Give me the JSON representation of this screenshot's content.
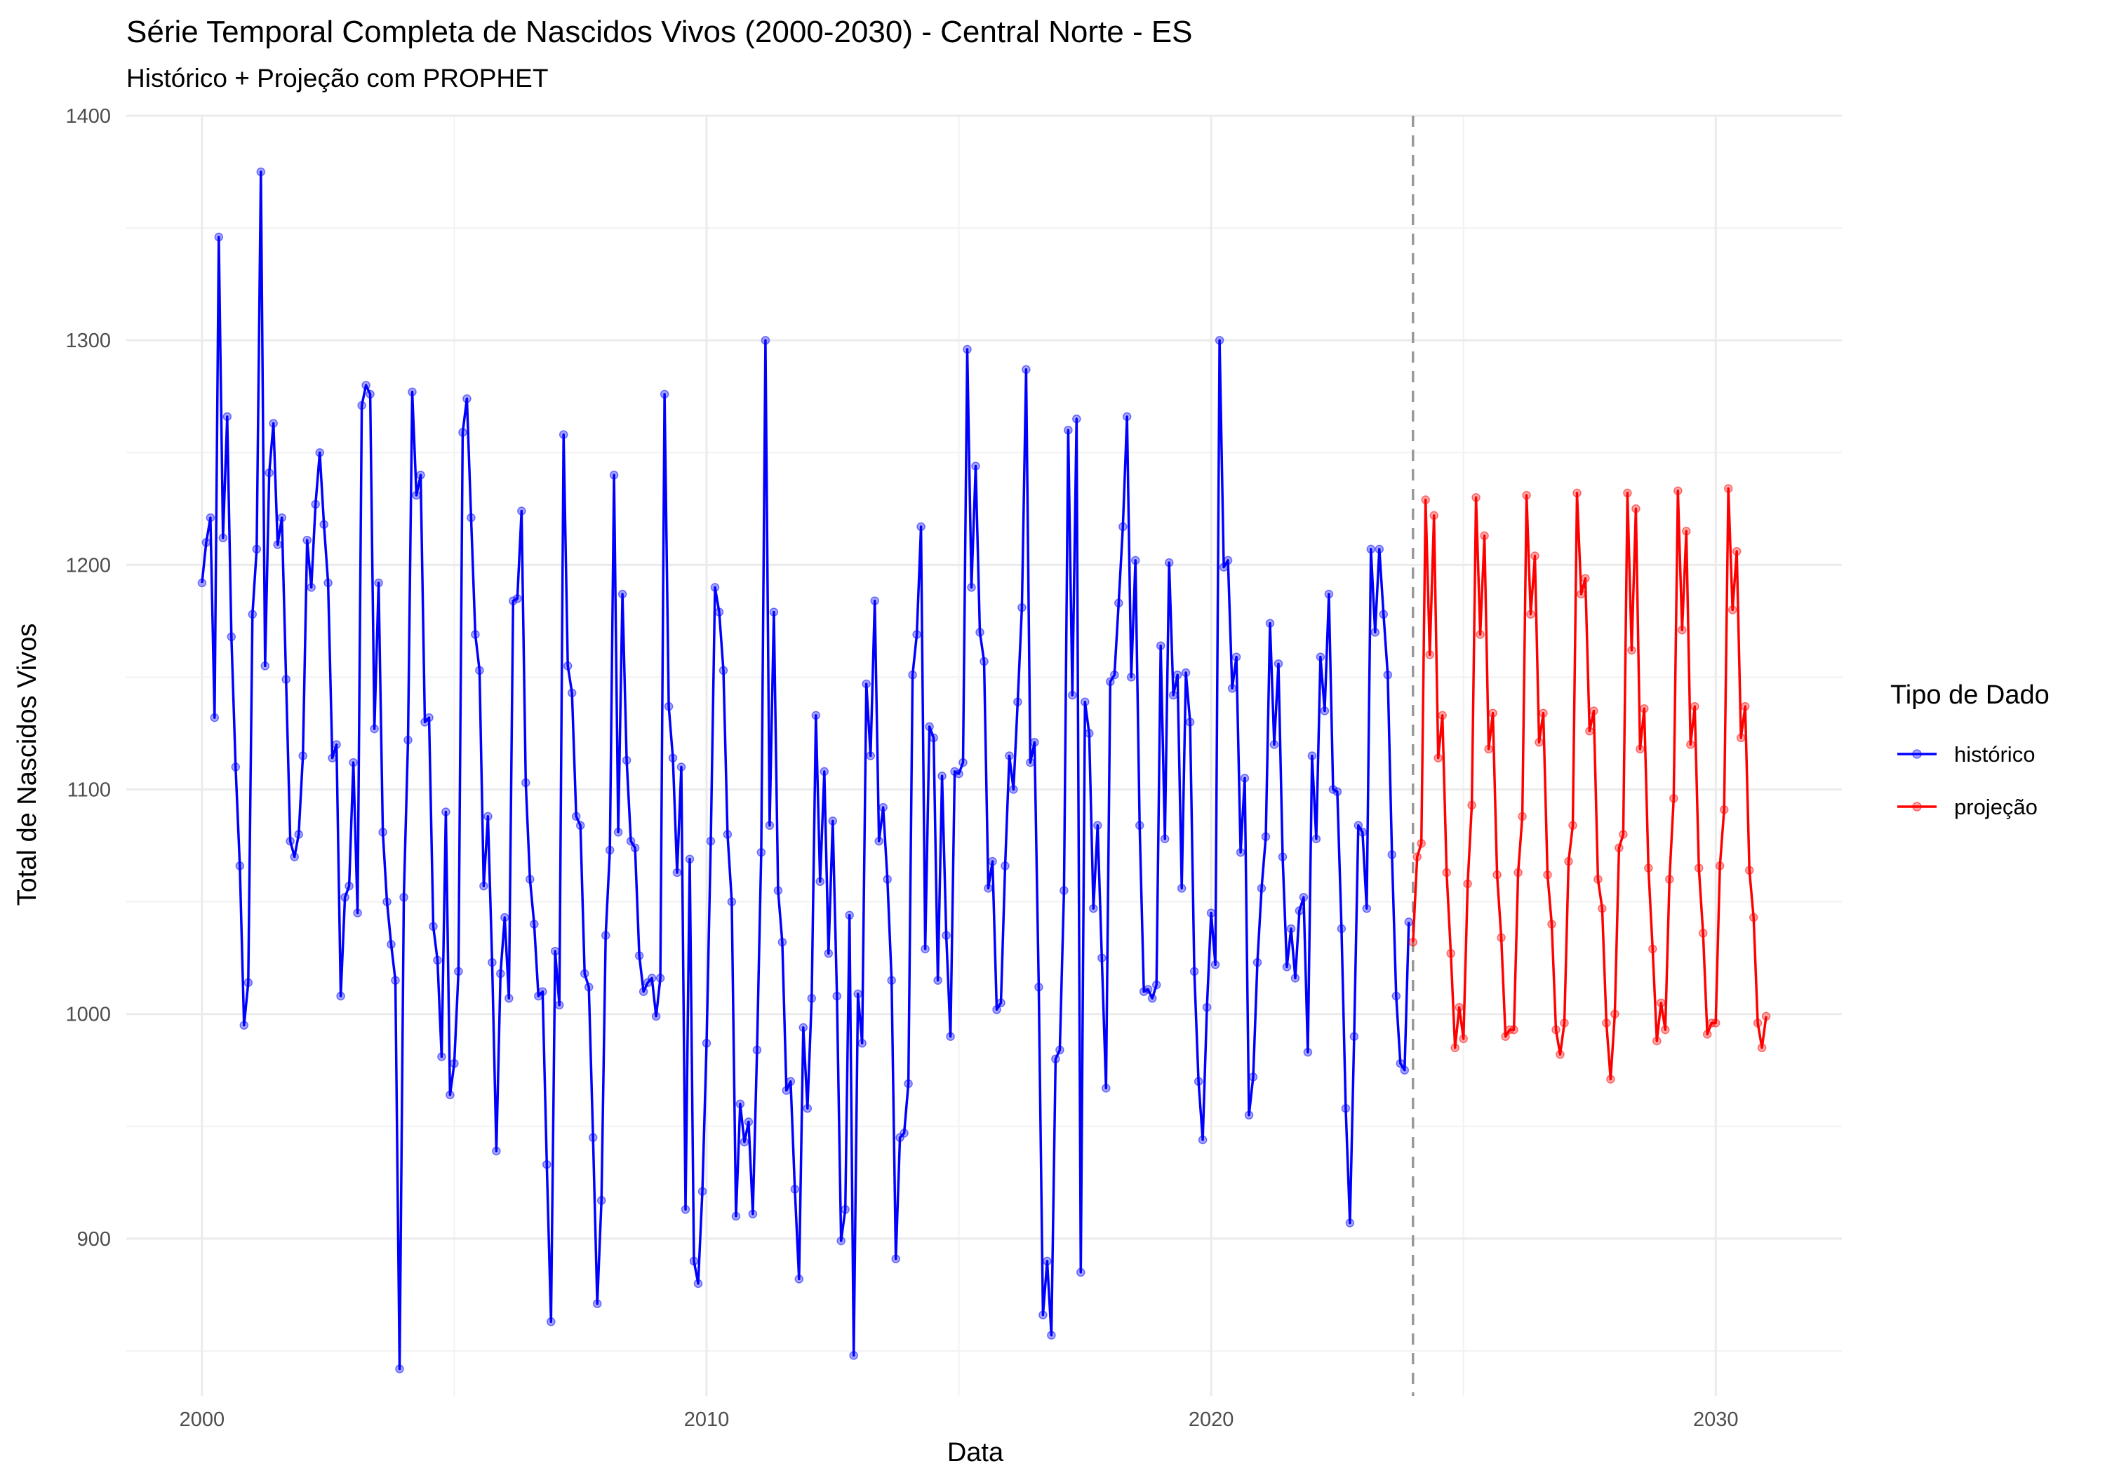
{
  "chart_data": {
    "type": "line",
    "title": "Série Temporal Completa de Nascidos Vivos (2000-2030) -  Central Norte - ES",
    "subtitle": "Histórico + Projeção com PROPHET",
    "xlabel": "Data",
    "ylabel": "Total de Nascidos Vivos",
    "xlim": [
      1998.5,
      2032.5
    ],
    "ylim": [
      830,
      1400
    ],
    "x_ticks": [
      2000,
      2010,
      2020,
      2030
    ],
    "y_ticks": [
      900,
      1000,
      1100,
      1200,
      1300,
      1400
    ],
    "grid": true,
    "legend": {
      "title": "Tipo de Dado",
      "position": "right"
    },
    "vline": {
      "x": 2024.0,
      "style": "dashed",
      "color": "#999999"
    },
    "series": [
      {
        "name": "histórico",
        "color": "#0000ff",
        "x_start": 2000.0,
        "x_step": 0.0833333,
        "values": [
          1192,
          1210,
          1221,
          1132,
          1346,
          1212,
          1266,
          1168,
          1110,
          1066,
          995,
          1014,
          1178,
          1207,
          1375,
          1155,
          1241,
          1263,
          1209,
          1221,
          1149,
          1077,
          1070,
          1080,
          1115,
          1211,
          1190,
          1227,
          1250,
          1218,
          1192,
          1114,
          1120,
          1008,
          1052,
          1057,
          1112,
          1045,
          1271,
          1280,
          1276,
          1127,
          1192,
          1081,
          1050,
          1031,
          1015,
          842,
          1052,
          1122,
          1277,
          1231,
          1240,
          1130,
          1132,
          1039,
          1024,
          981,
          1090,
          964,
          978,
          1019,
          1259,
          1274,
          1221,
          1169,
          1153,
          1057,
          1088,
          1023,
          939,
          1018,
          1043,
          1007,
          1184,
          1185,
          1224,
          1103,
          1060,
          1040,
          1008,
          1010,
          933,
          863,
          1028,
          1004,
          1258,
          1155,
          1143,
          1088,
          1084,
          1018,
          1012,
          945,
          871,
          917,
          1035,
          1073,
          1240,
          1081,
          1187,
          1113,
          1077,
          1074,
          1026,
          1010,
          1014,
          1016,
          999,
          1016,
          1276,
          1137,
          1114,
          1063,
          1110,
          913,
          1069,
          890,
          880,
          921,
          987,
          1077,
          1190,
          1179,
          1153,
          1080,
          1050,
          910,
          960,
          943,
          952,
          911,
          984,
          1072,
          1300,
          1084,
          1179,
          1055,
          1032,
          966,
          970,
          922,
          882,
          994,
          958,
          1007,
          1133,
          1059,
          1108,
          1027,
          1086,
          1008,
          899,
          913,
          1044,
          848,
          1009,
          987,
          1147,
          1115,
          1184,
          1077,
          1092,
          1060,
          1015,
          891,
          945,
          947,
          969,
          1151,
          1169,
          1217,
          1029,
          1128,
          1123,
          1015,
          1106,
          1035,
          990,
          1108,
          1107,
          1112,
          1296,
          1190,
          1244,
          1170,
          1157,
          1056,
          1068,
          1002,
          1005,
          1066,
          1115,
          1100,
          1139,
          1181,
          1287,
          1112,
          1121,
          1012,
          866,
          890,
          857,
          980,
          984,
          1055,
          1260,
          1142,
          1265,
          885,
          1139,
          1125,
          1047,
          1084,
          1025,
          967,
          1148,
          1151,
          1183,
          1217,
          1266,
          1150,
          1202,
          1084,
          1010,
          1011,
          1007,
          1013,
          1164,
          1078,
          1201,
          1142,
          1151,
          1056,
          1152,
          1130,
          1019,
          970,
          944,
          1003,
          1045,
          1022,
          1300,
          1199,
          1202,
          1145,
          1159,
          1072,
          1105,
          955,
          972,
          1023,
          1056,
          1079,
          1174,
          1120,
          1156,
          1070,
          1021,
          1038,
          1016,
          1046,
          1052,
          983,
          1115,
          1078,
          1159,
          1135,
          1187,
          1100,
          1099,
          1038,
          958,
          907,
          990,
          1084,
          1081,
          1047,
          1207,
          1170,
          1207,
          1178,
          1151,
          1071,
          1008,
          978,
          975,
          1041
        ]
      },
      {
        "name": "projeção",
        "color": "#ff0000",
        "x_start": 2024.0,
        "x_step": 0.0833333,
        "values": [
          1032,
          1070,
          1076,
          1229,
          1160,
          1222,
          1114,
          1133,
          1063,
          1027,
          985,
          1003,
          989,
          1058,
          1093,
          1230,
          1169,
          1213,
          1118,
          1134,
          1062,
          1034,
          990,
          993,
          993,
          1063,
          1088,
          1231,
          1178,
          1204,
          1121,
          1134,
          1062,
          1040,
          993,
          982,
          996,
          1068,
          1084,
          1232,
          1187,
          1194,
          1126,
          1135,
          1060,
          1047,
          996,
          971,
          1000,
          1074,
          1080,
          1232,
          1162,
          1225,
          1118,
          1136,
          1065,
          1029,
          988,
          1005,
          993,
          1060,
          1096,
          1233,
          1171,
          1215,
          1120,
          1137,
          1065,
          1036,
          991,
          996,
          996,
          1066,
          1091,
          1234,
          1180,
          1206,
          1123,
          1137,
          1064,
          1043,
          996,
          985,
          999
        ]
      }
    ]
  }
}
